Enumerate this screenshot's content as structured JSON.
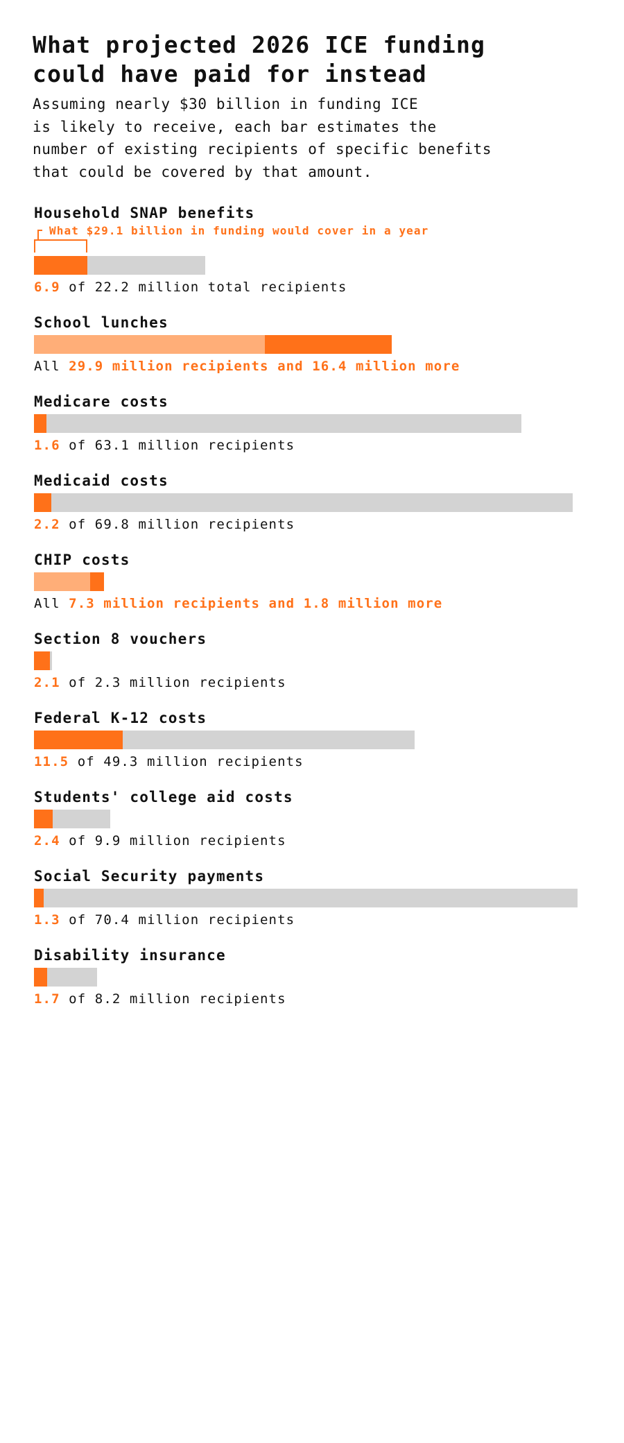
{
  "title_lines": [
    "What projected 2026 ICE funding",
    "could have paid for instead"
  ],
  "subtitle_lines": [
    "Assuming nearly $30 billion in funding ICE",
    "is likely to receive, each bar estimates the",
    "number of existing recipients of specific benefits",
    "that could be covered by that amount."
  ],
  "colors": {
    "covered": "#ff7119",
    "total": "#d3d3d3",
    "all_covered": "#ffae78",
    "text": "#111111"
  },
  "chart_data": {
    "type": "bar",
    "orientation": "horizontal",
    "units": "million recipients",
    "annotation": "What $29.1 billion in funding would cover in a year",
    "categories": [
      "Household SNAP benefits",
      "School lunches",
      "Medicare costs",
      "Medicaid costs",
      "CHIP costs",
      "Section 8 vouchers",
      "Federal K-12 costs",
      "Students' college aid costs",
      "Social Security payments",
      "Disability insurance"
    ],
    "items": [
      {
        "name": "Household SNAP benefits",
        "covered": 6.9,
        "total": 22.2,
        "label_hl": "6.9",
        "label_rest": " of 22.2 million total recipients"
      },
      {
        "name": "School lunches",
        "covered": 46.3,
        "total": 29.9,
        "extra": 16.4,
        "label_pre": "All ",
        "label_hl": "29.9 million recipients and 16.4 million more"
      },
      {
        "name": "Medicare costs",
        "covered": 1.6,
        "total": 63.1,
        "label_hl": "1.6",
        "label_rest": " of 63.1 million recipients"
      },
      {
        "name": "Medicaid costs",
        "covered": 2.2,
        "total": 69.8,
        "label_hl": "2.2",
        "label_rest": " of 69.8 million recipients"
      },
      {
        "name": "CHIP costs",
        "covered": 9.1,
        "total": 7.3,
        "extra": 1.8,
        "label_pre": "All ",
        "label_hl": "7.3 million recipients and 1.8 million more"
      },
      {
        "name": "Section 8 vouchers",
        "covered": 2.1,
        "total": 2.3,
        "label_hl": "2.1",
        "label_rest": " of 2.3 million recipients"
      },
      {
        "name": "Federal K-12 costs",
        "covered": 11.5,
        "total": 49.3,
        "label_hl": "11.5",
        "label_rest": " of 49.3 million recipients"
      },
      {
        "name": "Students' college aid costs",
        "covered": 2.4,
        "total": 9.9,
        "label_hl": "2.4",
        "label_rest": " of 9.9 million recipients"
      },
      {
        "name": "Social Security payments",
        "covered": 1.3,
        "total": 70.4,
        "label_hl": "1.3",
        "label_rest": " of 70.4 million recipients"
      },
      {
        "name": "Disability insurance",
        "covered": 1.7,
        "total": 8.2,
        "label_hl": "1.7",
        "label_rest": " of 8.2 million recipients"
      }
    ]
  }
}
